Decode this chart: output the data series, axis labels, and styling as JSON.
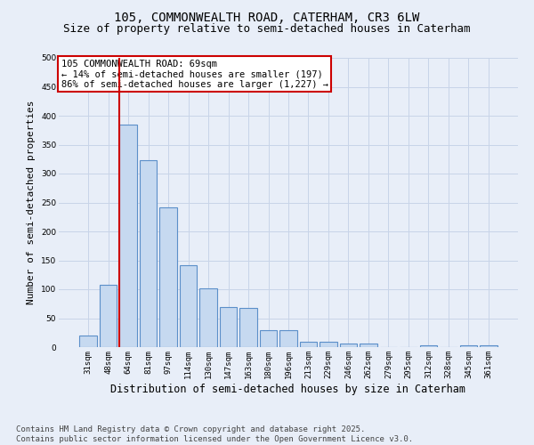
{
  "title_line1": "105, COMMONWEALTH ROAD, CATERHAM, CR3 6LW",
  "title_line2": "Size of property relative to semi-detached houses in Caterham",
  "xlabel": "Distribution of semi-detached houses by size in Caterham",
  "ylabel": "Number of semi-detached properties",
  "categories": [
    "31sqm",
    "48sqm",
    "64sqm",
    "81sqm",
    "97sqm",
    "114sqm",
    "130sqm",
    "147sqm",
    "163sqm",
    "180sqm",
    "196sqm",
    "213sqm",
    "229sqm",
    "246sqm",
    "262sqm",
    "279sqm",
    "295sqm",
    "312sqm",
    "328sqm",
    "345sqm",
    "361sqm"
  ],
  "values": [
    20,
    107,
    385,
    323,
    241,
    141,
    102,
    69,
    68,
    30,
    30,
    9,
    9,
    6,
    6,
    0,
    0,
    3,
    0,
    3,
    3
  ],
  "bar_color": "#c6d9f0",
  "bar_edge_color": "#5b8fc9",
  "vline_color": "#cc0000",
  "vline_x_index": 2,
  "annotation_text": "105 COMMONWEALTH ROAD: 69sqm\n← 14% of semi-detached houses are smaller (197)\n86% of semi-detached houses are larger (1,227) →",
  "annotation_box_color": "white",
  "annotation_edge_color": "#cc0000",
  "ylim": [
    0,
    500
  ],
  "yticks": [
    0,
    50,
    100,
    150,
    200,
    250,
    300,
    350,
    400,
    450,
    500
  ],
  "grid_color": "#c8d4e8",
  "background_color": "#e8eef8",
  "footer": "Contains HM Land Registry data © Crown copyright and database right 2025.\nContains public sector information licensed under the Open Government Licence v3.0.",
  "title_fontsize": 10,
  "subtitle_fontsize": 9,
  "tick_fontsize": 6.5,
  "ylabel_fontsize": 8,
  "xlabel_fontsize": 8.5,
  "footer_fontsize": 6.5,
  "annot_fontsize": 7.5
}
